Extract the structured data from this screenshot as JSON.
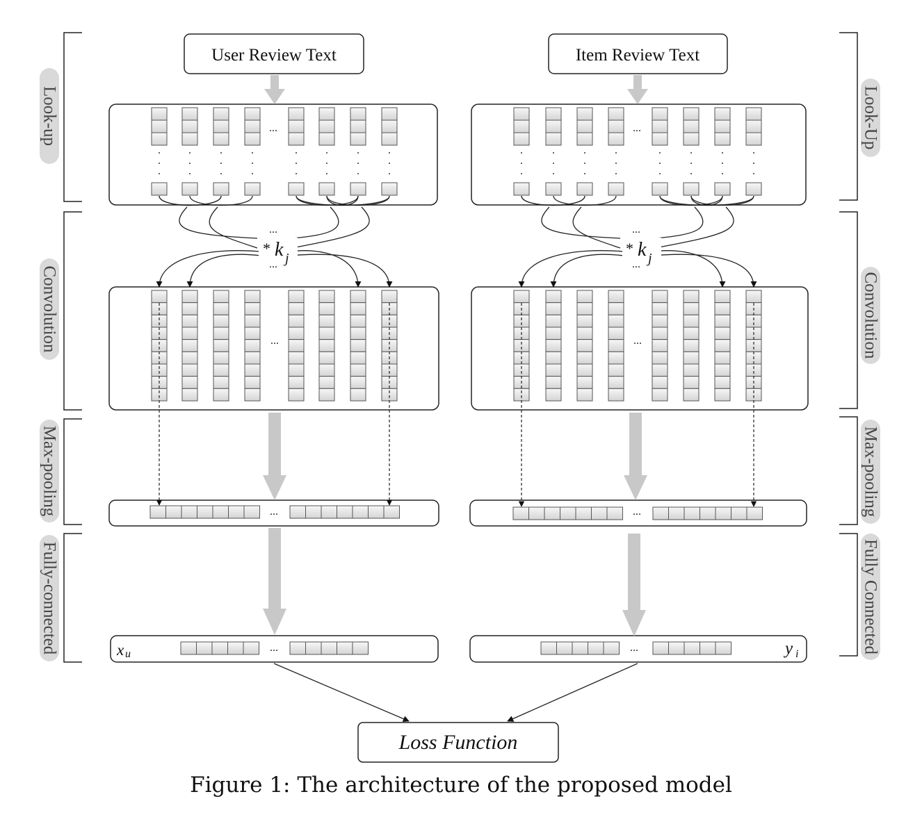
{
  "inputs": {
    "user": "User Review Text",
    "item": "Item Review Text"
  },
  "side_labels": {
    "left": [
      "Look-up",
      "Convolution",
      "Max-pooling",
      "Fully-connected"
    ],
    "right": [
      "Look-Up",
      "Convolution",
      "Max-pooling",
      "Fully Connected"
    ]
  },
  "operator": {
    "symbol": "*",
    "kernel": "k",
    "kernel_sub": "j"
  },
  "ellipsis": "...",
  "outputs": {
    "user_var": "x",
    "user_sub": "u",
    "item_var": "y",
    "item_sub": "i"
  },
  "loss": "Loss Function",
  "caption": "Figure 1:  The architecture of the proposed model",
  "colors": {
    "arrow_gray": "#c8c8c8",
    "box_stroke": "#222222",
    "cell_fill": "#e6e6e6",
    "label_pill": "#d9d9d9"
  }
}
